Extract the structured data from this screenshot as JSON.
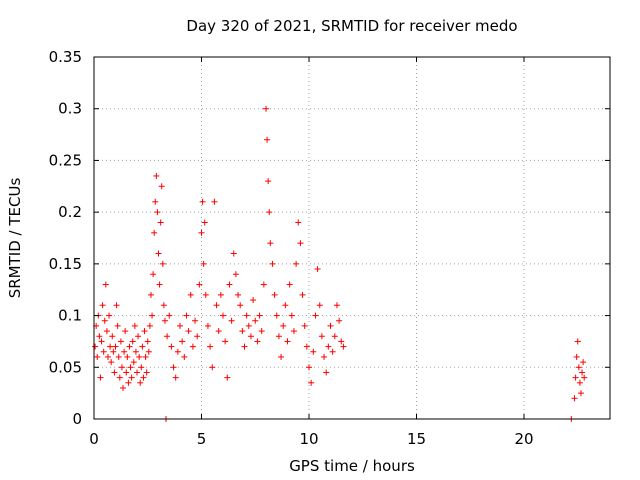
{
  "chart_data": {
    "type": "scatter",
    "title": "Day 320 of 2021, SRMTID for receiver medo",
    "xlabel": "GPS time / hours",
    "ylabel": "SRMTID / TECUs",
    "xlim": [
      0,
      24
    ],
    "ylim": [
      0,
      0.35
    ],
    "xticks": [
      0,
      5,
      10,
      15,
      20
    ],
    "yticks": [
      0,
      0.05,
      0.1,
      0.15,
      0.2,
      0.25,
      0.3,
      0.35
    ],
    "ytick_labels": [
      "0",
      "0.05",
      "0.1",
      "0.15",
      "0.2",
      "0.25",
      "0.3",
      "0.35"
    ],
    "grid": true,
    "marker": "+",
    "marker_color": "#ff0000",
    "series": [
      {
        "name": "SRMTID",
        "points": [
          [
            0.05,
            0.07
          ],
          [
            0.1,
            0.09
          ],
          [
            0.15,
            0.06
          ],
          [
            0.2,
            0.1
          ],
          [
            0.25,
            0.08
          ],
          [
            0.3,
            0.04
          ],
          [
            0.35,
            0.075
          ],
          [
            0.4,
            0.11
          ],
          [
            0.45,
            0.065
          ],
          [
            0.5,
            0.095
          ],
          [
            0.55,
            0.13
          ],
          [
            0.6,
            0.085
          ],
          [
            0.65,
            0.06
          ],
          [
            0.7,
            0.1
          ],
          [
            0.75,
            0.07
          ],
          [
            0.8,
            0.055
          ],
          [
            0.85,
            0.08
          ],
          [
            0.9,
            0.065
          ],
          [
            0.95,
            0.045
          ],
          [
            1.0,
            0.07
          ],
          [
            1.05,
            0.11
          ],
          [
            1.1,
            0.09
          ],
          [
            1.15,
            0.06
          ],
          [
            1.2,
            0.04
          ],
          [
            1.25,
            0.075
          ],
          [
            1.3,
            0.05
          ],
          [
            1.35,
            0.03
          ],
          [
            1.4,
            0.065
          ],
          [
            1.45,
            0.085
          ],
          [
            1.5,
            0.045
          ],
          [
            1.55,
            0.06
          ],
          [
            1.6,
            0.035
          ],
          [
            1.65,
            0.07
          ],
          [
            1.7,
            0.05
          ],
          [
            1.75,
            0.04
          ],
          [
            1.8,
            0.075
          ],
          [
            1.85,
            0.055
          ],
          [
            1.9,
            0.09
          ],
          [
            1.95,
            0.065
          ],
          [
            2.0,
            0.045
          ],
          [
            2.05,
            0.08
          ],
          [
            2.1,
            0.06
          ],
          [
            2.15,
            0.035
          ],
          [
            2.2,
            0.05
          ],
          [
            2.25,
            0.07
          ],
          [
            2.3,
            0.04
          ],
          [
            2.35,
            0.085
          ],
          [
            2.4,
            0.06
          ],
          [
            2.45,
            0.045
          ],
          [
            2.5,
            0.075
          ],
          [
            2.55,
            0.065
          ],
          [
            2.6,
            0.09
          ],
          [
            2.65,
            0.12
          ],
          [
            2.7,
            0.1
          ],
          [
            2.75,
            0.14
          ],
          [
            2.8,
            0.18
          ],
          [
            2.85,
            0.21
          ],
          [
            2.9,
            0.235
          ],
          [
            2.95,
            0.2
          ],
          [
            3.0,
            0.16
          ],
          [
            3.05,
            0.13
          ],
          [
            3.1,
            0.19
          ],
          [
            3.15,
            0.225
          ],
          [
            3.2,
            0.15
          ],
          [
            3.25,
            0.11
          ],
          [
            3.3,
            0.095
          ],
          [
            3.35,
            0.0
          ],
          [
            3.4,
            0.08
          ],
          [
            3.5,
            0.1
          ],
          [
            3.6,
            0.07
          ],
          [
            3.7,
            0.05
          ],
          [
            3.8,
            0.04
          ],
          [
            3.9,
            0.065
          ],
          [
            4.0,
            0.09
          ],
          [
            4.1,
            0.075
          ],
          [
            4.2,
            0.06
          ],
          [
            4.3,
            0.1
          ],
          [
            4.4,
            0.085
          ],
          [
            4.5,
            0.12
          ],
          [
            4.6,
            0.07
          ],
          [
            4.7,
            0.095
          ],
          [
            4.8,
            0.08
          ],
          [
            4.9,
            0.13
          ],
          [
            5.0,
            0.18
          ],
          [
            5.05,
            0.21
          ],
          [
            5.1,
            0.15
          ],
          [
            5.15,
            0.19
          ],
          [
            5.2,
            0.12
          ],
          [
            5.3,
            0.09
          ],
          [
            5.4,
            0.07
          ],
          [
            5.5,
            0.05
          ],
          [
            5.6,
            0.21
          ],
          [
            5.7,
            0.11
          ],
          [
            5.8,
            0.085
          ],
          [
            5.9,
            0.12
          ],
          [
            6.0,
            0.1
          ],
          [
            6.1,
            0.075
          ],
          [
            6.2,
            0.04
          ],
          [
            6.3,
            0.13
          ],
          [
            6.4,
            0.095
          ],
          [
            6.5,
            0.16
          ],
          [
            6.6,
            0.14
          ],
          [
            6.7,
            0.12
          ],
          [
            6.8,
            0.11
          ],
          [
            6.9,
            0.085
          ],
          [
            7.0,
            0.07
          ],
          [
            7.1,
            0.1
          ],
          [
            7.2,
            0.09
          ],
          [
            7.3,
            0.08
          ],
          [
            7.4,
            0.115
          ],
          [
            7.5,
            0.095
          ],
          [
            7.6,
            0.075
          ],
          [
            7.7,
            0.1
          ],
          [
            7.8,
            0.085
          ],
          [
            7.9,
            0.13
          ],
          [
            8.0,
            0.3
          ],
          [
            8.05,
            0.27
          ],
          [
            8.1,
            0.23
          ],
          [
            8.15,
            0.2
          ],
          [
            8.2,
            0.17
          ],
          [
            8.3,
            0.15
          ],
          [
            8.4,
            0.12
          ],
          [
            8.5,
            0.1
          ],
          [
            8.6,
            0.08
          ],
          [
            8.7,
            0.06
          ],
          [
            8.8,
            0.09
          ],
          [
            8.9,
            0.11
          ],
          [
            9.0,
            0.075
          ],
          [
            9.1,
            0.13
          ],
          [
            9.2,
            0.1
          ],
          [
            9.3,
            0.085
          ],
          [
            9.4,
            0.15
          ],
          [
            9.5,
            0.19
          ],
          [
            9.6,
            0.17
          ],
          [
            9.7,
            0.12
          ],
          [
            9.8,
            0.09
          ],
          [
            9.9,
            0.07
          ],
          [
            10.0,
            0.05
          ],
          [
            10.1,
            0.035
          ],
          [
            10.2,
            0.065
          ],
          [
            10.3,
            0.1
          ],
          [
            10.4,
            0.145
          ],
          [
            10.5,
            0.11
          ],
          [
            10.6,
            0.08
          ],
          [
            10.7,
            0.06
          ],
          [
            10.8,
            0.045
          ],
          [
            10.9,
            0.07
          ],
          [
            11.0,
            0.09
          ],
          [
            11.1,
            0.065
          ],
          [
            11.2,
            0.08
          ],
          [
            11.3,
            0.11
          ],
          [
            11.4,
            0.095
          ],
          [
            11.5,
            0.075
          ],
          [
            11.6,
            0.07
          ],
          [
            22.2,
            0.0
          ],
          [
            22.35,
            0.02
          ],
          [
            22.4,
            0.04
          ],
          [
            22.45,
            0.06
          ],
          [
            22.5,
            0.075
          ],
          [
            22.55,
            0.05
          ],
          [
            22.6,
            0.035
          ],
          [
            22.65,
            0.025
          ],
          [
            22.7,
            0.045
          ],
          [
            22.75,
            0.055
          ],
          [
            22.8,
            0.04
          ]
        ]
      }
    ]
  }
}
